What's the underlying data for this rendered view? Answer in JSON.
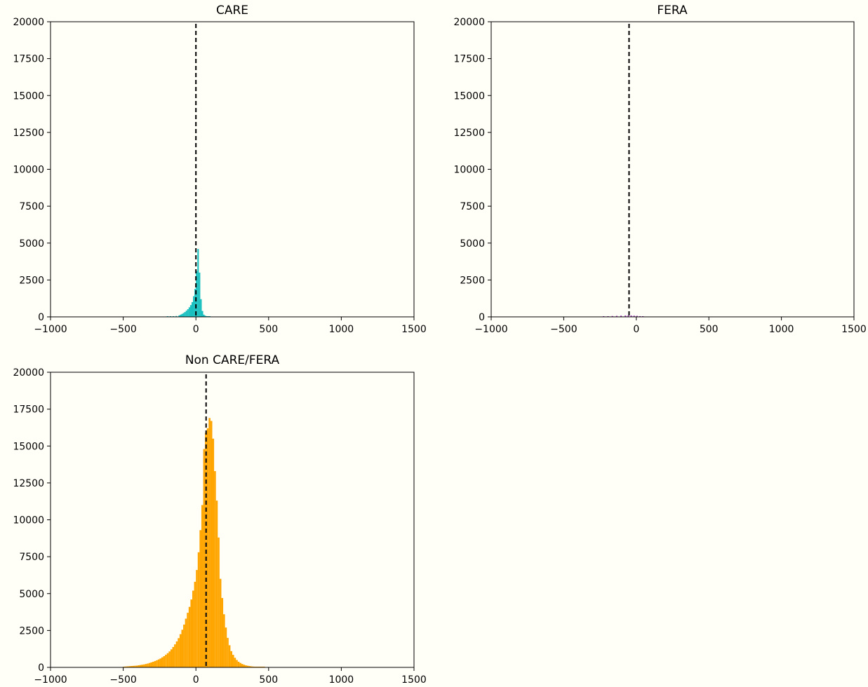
{
  "background_color": "#fffef7",
  "chart_data": [
    {
      "type": "bar",
      "subtype": "histogram",
      "title": "CARE",
      "color": "#17bfbf",
      "xlim": [
        -1000,
        1500
      ],
      "ylim": [
        0,
        20000
      ],
      "x_ticks": [
        -1000,
        -500,
        0,
        500,
        1000,
        1500
      ],
      "x_tick_labels": [
        "−1000",
        "−500",
        "0",
        "500",
        "1000",
        "1500"
      ],
      "y_ticks": [
        0,
        2500,
        5000,
        7500,
        10000,
        12500,
        15000,
        17500,
        20000
      ],
      "y_tick_labels": [
        "0",
        "2500",
        "5000",
        "7500",
        "10000",
        "12500",
        "15000",
        "17500",
        "20000"
      ],
      "bin_width": 10,
      "bins": [
        [
          -200,
          10
        ],
        [
          -180,
          20
        ],
        [
          -160,
          40
        ],
        [
          -140,
          60
        ],
        [
          -120,
          100
        ],
        [
          -110,
          150
        ],
        [
          -100,
          200
        ],
        [
          -90,
          260
        ],
        [
          -80,
          330
        ],
        [
          -70,
          420
        ],
        [
          -60,
          520
        ],
        [
          -50,
          650
        ],
        [
          -40,
          800
        ],
        [
          -30,
          1000
        ],
        [
          -20,
          1400
        ],
        [
          -10,
          1900
        ],
        [
          0,
          3100
        ],
        [
          10,
          4600
        ],
        [
          20,
          3000
        ],
        [
          30,
          1200
        ],
        [
          40,
          400
        ],
        [
          50,
          150
        ],
        [
          60,
          80
        ],
        [
          70,
          40
        ],
        [
          80,
          20
        ],
        [
          90,
          10
        ]
      ],
      "reference_line_x": 0
    },
    {
      "type": "bar",
      "subtype": "histogram",
      "title": "FERA",
      "color": "#9b30b5",
      "xlim": [
        -1000,
        1500
      ],
      "ylim": [
        0,
        20000
      ],
      "x_ticks": [
        -1000,
        -500,
        0,
        500,
        1000,
        1500
      ],
      "x_tick_labels": [
        "−1000",
        "−500",
        "0",
        "500",
        "1000",
        "1500"
      ],
      "y_ticks": [
        0,
        2500,
        5000,
        7500,
        10000,
        12500,
        15000,
        17500,
        20000
      ],
      "y_tick_labels": [
        "0",
        "2500",
        "5000",
        "7500",
        "10000",
        "12500",
        "15000",
        "17500",
        "20000"
      ],
      "bin_width": 10,
      "bins": [
        [
          -230,
          20
        ],
        [
          -200,
          40
        ],
        [
          -170,
          60
        ],
        [
          -140,
          70
        ],
        [
          -110,
          80
        ],
        [
          -80,
          90
        ],
        [
          -60,
          100
        ],
        [
          -40,
          90
        ],
        [
          -20,
          80
        ],
        [
          0,
          70
        ],
        [
          20,
          50
        ],
        [
          40,
          30
        ]
      ],
      "reference_line_x": -50
    },
    {
      "type": "bar",
      "subtype": "histogram",
      "title": "Non CARE/FERA",
      "color": "#ffa500",
      "xlim": [
        -1000,
        1500
      ],
      "ylim": [
        0,
        20000
      ],
      "x_ticks": [
        -1000,
        -500,
        0,
        500,
        1000,
        1500
      ],
      "x_tick_labels": [
        "−1000",
        "−500",
        "0",
        "500",
        "1000",
        "1500"
      ],
      "y_ticks": [
        0,
        2500,
        5000,
        7500,
        10000,
        12500,
        15000,
        17500,
        20000
      ],
      "y_tick_labels": [
        "0",
        "2500",
        "5000",
        "7500",
        "10000",
        "12500",
        "15000",
        "17500",
        "20000"
      ],
      "bin_width": 12.5,
      "bins": [
        [
          -500,
          50
        ],
        [
          -487.5,
          60
        ],
        [
          -475,
          70
        ],
        [
          -462.5,
          80
        ],
        [
          -450,
          90
        ],
        [
          -437.5,
          100
        ],
        [
          -425,
          110
        ],
        [
          -412.5,
          120
        ],
        [
          -400,
          140
        ],
        [
          -387.5,
          160
        ],
        [
          -375,
          180
        ],
        [
          -362.5,
          200
        ],
        [
          -350,
          230
        ],
        [
          -337.5,
          260
        ],
        [
          -325,
          300
        ],
        [
          -312.5,
          340
        ],
        [
          -300,
          380
        ],
        [
          -287.5,
          430
        ],
        [
          -275,
          480
        ],
        [
          -262.5,
          540
        ],
        [
          -250,
          600
        ],
        [
          -237.5,
          680
        ],
        [
          -225,
          760
        ],
        [
          -212.5,
          860
        ],
        [
          -200,
          960
        ],
        [
          -187.5,
          1080
        ],
        [
          -175,
          1220
        ],
        [
          -162.5,
          1380
        ],
        [
          -150,
          1560
        ],
        [
          -137.5,
          1760
        ],
        [
          -125,
          1980
        ],
        [
          -112.5,
          2250
        ],
        [
          -100,
          2550
        ],
        [
          -87.5,
          2900
        ],
        [
          -75,
          3300
        ],
        [
          -62.5,
          3700
        ],
        [
          -50,
          4100
        ],
        [
          -37.5,
          4600
        ],
        [
          -25,
          5200
        ],
        [
          -12.5,
          5800
        ],
        [
          0,
          6600
        ],
        [
          12.5,
          7800
        ],
        [
          25,
          9300
        ],
        [
          37.5,
          11000
        ],
        [
          50,
          14800
        ],
        [
          62.5,
          15900
        ],
        [
          75,
          16200
        ],
        [
          87.5,
          16900
        ],
        [
          100,
          16700
        ],
        [
          112.5,
          15500
        ],
        [
          125,
          13300
        ],
        [
          137.5,
          11300
        ],
        [
          150,
          8800
        ],
        [
          162.5,
          6000
        ],
        [
          175,
          4700
        ],
        [
          187.5,
          3600
        ],
        [
          200,
          2700
        ],
        [
          212.5,
          2000
        ],
        [
          225,
          1500
        ],
        [
          237.5,
          1100
        ],
        [
          250,
          850
        ],
        [
          262.5,
          650
        ],
        [
          275,
          500
        ],
        [
          287.5,
          380
        ],
        [
          300,
          300
        ],
        [
          312.5,
          230
        ],
        [
          325,
          180
        ],
        [
          337.5,
          140
        ],
        [
          350,
          110
        ],
        [
          362.5,
          90
        ],
        [
          375,
          70
        ],
        [
          387.5,
          55
        ],
        [
          400,
          45
        ],
        [
          412.5,
          35
        ],
        [
          425,
          25
        ],
        [
          437.5,
          20
        ],
        [
          450,
          15
        ],
        [
          462.5,
          10
        ]
      ],
      "reference_line_x": 70
    }
  ]
}
